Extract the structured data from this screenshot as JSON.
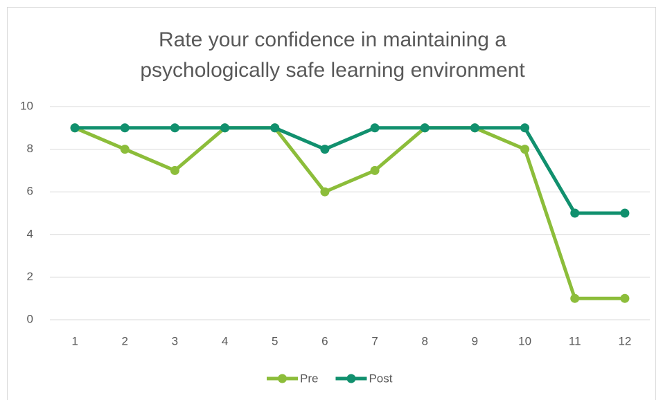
{
  "chart_data": {
    "type": "line",
    "title": "Rate your confidence in maintaining a psychologically safe learning environment",
    "categories": [
      "1",
      "2",
      "3",
      "4",
      "5",
      "6",
      "7",
      "8",
      "9",
      "10",
      "11",
      "12"
    ],
    "series": [
      {
        "name": "Pre",
        "color": "#8cbd3a",
        "values": [
          9,
          8,
          7,
          9,
          9,
          6,
          7,
          9,
          9,
          8,
          1,
          1
        ]
      },
      {
        "name": "Post",
        "color": "#11906e",
        "values": [
          9,
          9,
          9,
          9,
          9,
          8,
          9,
          9,
          9,
          9,
          5,
          5
        ]
      }
    ],
    "ylim": [
      0,
      10
    ],
    "yticks": [
      0,
      2,
      4,
      6,
      8,
      10
    ],
    "grid": true,
    "legend": "bottom"
  }
}
